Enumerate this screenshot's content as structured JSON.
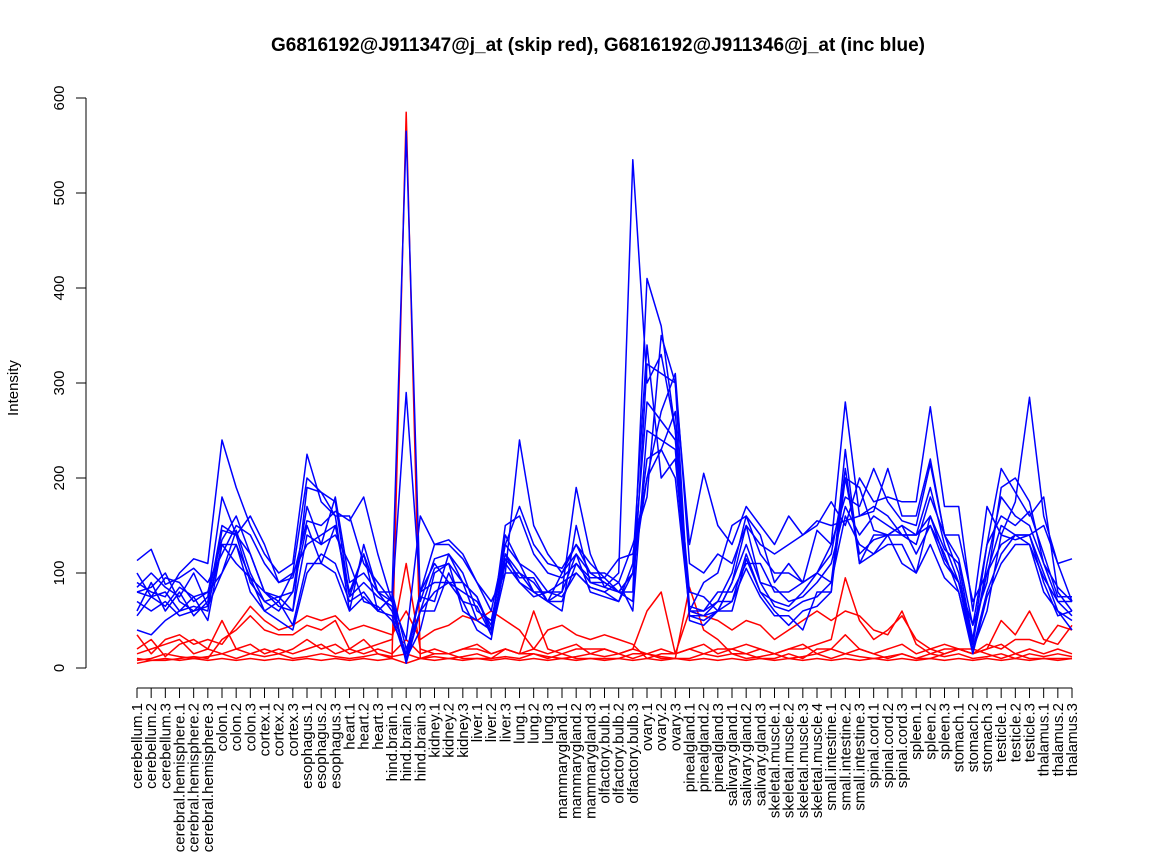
{
  "chart_data": {
    "type": "line",
    "title": "G6816192@J911347@j_at (skip red), G6816192@J911346@j_at (inc blue)",
    "xlabel": "",
    "ylabel": "Intensity",
    "ylim": [
      0,
      600
    ],
    "y_ticks": [
      0,
      100,
      200,
      300,
      400,
      500,
      600
    ],
    "grid": false,
    "legend": "none",
    "colors": {
      "skip": "#ff0000",
      "inc": "#0000ff"
    },
    "categories": [
      "cerebellum.1",
      "cerebellum.2",
      "cerebellum.3",
      "cerebral.hemisphere.1",
      "cerebral.hemisphere.2",
      "cerebral.hemisphere.3",
      "colon.1",
      "colon.2",
      "colon.3",
      "cortex.1",
      "cortex.2",
      "cortex.3",
      "esophagus.1",
      "esophagus.2",
      "esophagus.3",
      "heart.1",
      "heart.2",
      "heart.3",
      "hind.brain.1",
      "hind.brain.2",
      "hind.brain.3",
      "kidney.1",
      "kidney.2",
      "kidney.3",
      "liver.1",
      "liver.2",
      "liver.3",
      "lung.1",
      "lung.2",
      "lung.3",
      "mammarygland.1",
      "mammarygland.2",
      "mammarygland.3",
      "olfactory.bulb.1",
      "olfactory.bulb.2",
      "olfactory.bulb.3",
      "ovary.1",
      "ovary.2",
      "ovary.3",
      "pinealgland.1",
      "pinealgland.2",
      "pinealgland.3",
      "salivary.gland.1",
      "salivary.gland.2",
      "salivary.gland.3",
      "skeletal.muscle.1",
      "skeletal.muscle.2",
      "skeletal.muscle.3",
      "skeletal.muscle.4",
      "small.intestine.1",
      "small.intestine.2",
      "small.intestine.3",
      "spinal.cord.1",
      "spinal.cord.2",
      "spinal.cord.3",
      "spleen.1",
      "spleen.2",
      "spleen.3",
      "stomach.1",
      "stomach.2",
      "stomach.3",
      "testicle.1",
      "testicle.2",
      "testicle.3",
      "thalamus.1",
      "thalamus.2",
      "thalamus.3"
    ],
    "series": [
      {
        "group": "inc",
        "values": [
          113,
          125,
          88,
          95,
          105,
          90,
          120,
          150,
          140,
          110,
          90,
          95,
          155,
          150,
          165,
          155,
          180,
          120,
          70,
          30,
          160,
          130,
          130,
          115,
          90,
          60,
          130,
          170,
          130,
          110,
          105,
          130,
          110,
          95,
          115,
          120,
          200,
          270,
          310,
          110,
          100,
          120,
          110,
          150,
          130,
          120,
          130,
          140,
          155,
          150,
          155,
          160,
          165,
          210,
          160,
          160,
          220,
          140,
          140,
          70,
          100,
          130,
          140,
          140,
          150,
          110,
          115
        ]
      },
      {
        "group": "inc",
        "values": [
          90,
          80,
          75,
          100,
          115,
          110,
          240,
          190,
          150,
          120,
          100,
          110,
          225,
          175,
          160,
          160,
          110,
          90,
          70,
          290,
          80,
          130,
          135,
          120,
          90,
          70,
          100,
          240,
          150,
          120,
          100,
          130,
          100,
          100,
          90,
          130,
          180,
          350,
          300,
          130,
          205,
          150,
          130,
          170,
          150,
          130,
          160,
          140,
          150,
          175,
          150,
          200,
          175,
          180,
          175,
          175,
          275,
          170,
          170,
          60,
          170,
          140,
          175,
          285,
          160,
          110,
          70
        ]
      },
      {
        "group": "inc",
        "values": [
          80,
          85,
          100,
          70,
          60,
          75,
          180,
          140,
          160,
          130,
          90,
          100,
          200,
          185,
          175,
          75,
          120,
          60,
          75,
          565,
          70,
          115,
          120,
          90,
          75,
          40,
          150,
          160,
          120,
          100,
          95,
          110,
          95,
          95,
          80,
          80,
          410,
          360,
          250,
          60,
          90,
          100,
          150,
          160,
          140,
          90,
          110,
          90,
          145,
          130,
          180,
          170,
          210,
          175,
          155,
          150,
          215,
          140,
          115,
          45,
          130,
          210,
          185,
          160,
          180,
          80,
          60
        ]
      },
      {
        "group": "inc",
        "values": [
          55,
          75,
          80,
          60,
          65,
          60,
          145,
          140,
          120,
          80,
          65,
          60,
          190,
          185,
          160,
          60,
          130,
          80,
          80,
          20,
          60,
          105,
          110,
          90,
          50,
          40,
          140,
          110,
          100,
          80,
          80,
          190,
          120,
          85,
          100,
          535,
          300,
          330,
          250,
          65,
          60,
          70,
          100,
          160,
          120,
          100,
          100,
          90,
          100,
          120,
          200,
          190,
          145,
          140,
          140,
          140,
          190,
          130,
          90,
          45,
          90,
          190,
          200,
          175,
          110,
          85,
          70
        ]
      },
      {
        "group": "inc",
        "values": [
          80,
          75,
          65,
          85,
          75,
          80,
          100,
          145,
          100,
          70,
          75,
          60,
          140,
          130,
          140,
          110,
          70,
          65,
          50,
          15,
          75,
          70,
          120,
          100,
          60,
          50,
          120,
          100,
          90,
          70,
          60,
          150,
          90,
          85,
          80,
          100,
          200,
          230,
          200,
          60,
          60,
          80,
          80,
          110,
          110,
          80,
          80,
          90,
          100,
          90,
          160,
          130,
          120,
          140,
          150,
          140,
          160,
          125,
          110,
          30,
          130,
          160,
          150,
          165,
          120,
          75,
          75
        ]
      },
      {
        "group": "inc",
        "values": [
          40,
          35,
          50,
          60,
          75,
          50,
          130,
          130,
          80,
          60,
          50,
          40,
          100,
          120,
          110,
          70,
          80,
          60,
          55,
          8,
          80,
          90,
          90,
          70,
          65,
          35,
          100,
          100,
          80,
          70,
          80,
          120,
          80,
          75,
          70,
          100,
          220,
          230,
          270,
          55,
          50,
          60,
          90,
          130,
          90,
          65,
          60,
          70,
          75,
          90,
          210,
          110,
          140,
          140,
          110,
          100,
          160,
          115,
          90,
          20,
          60,
          140,
          135,
          140,
          100,
          60,
          40
        ]
      },
      {
        "group": "inc",
        "values": [
          70,
          60,
          70,
          55,
          60,
          65,
          100,
          130,
          95,
          60,
          70,
          45,
          110,
          110,
          100,
          60,
          75,
          60,
          75,
          5,
          60,
          60,
          100,
          70,
          40,
          30,
          115,
          95,
          95,
          70,
          70,
          110,
          90,
          90,
          80,
          70,
          320,
          310,
          300,
          50,
          45,
          60,
          60,
          115,
          80,
          60,
          45,
          60,
          65,
          80,
          200,
          120,
          135,
          140,
          150,
          120,
          150,
          120,
          80,
          15,
          75,
          110,
          130,
          130,
          80,
          60,
          50
        ]
      },
      {
        "group": "inc",
        "values": [
          60,
          90,
          60,
          80,
          55,
          70,
          150,
          140,
          90,
          70,
          60,
          80,
          150,
          110,
          150,
          80,
          120,
          80,
          70,
          10,
          40,
          100,
          110,
          60,
          50,
          40,
          110,
          90,
          75,
          80,
          75,
          100,
          85,
          80,
          70,
          110,
          340,
          200,
          220,
          60,
          55,
          70,
          70,
          105,
          75,
          55,
          55,
          40,
          80,
          80,
          230,
          110,
          120,
          130,
          130,
          100,
          130,
          95,
          80,
          20,
          80,
          120,
          140,
          140,
          90,
          55,
          60
        ]
      },
      {
        "group": "inc",
        "values": [
          100,
          75,
          95,
          90,
          70,
          80,
          135,
          160,
          120,
          80,
          70,
          100,
          130,
          140,
          150,
          75,
          90,
          75,
          65,
          10,
          60,
          80,
          90,
          90,
          75,
          35,
          120,
          90,
          80,
          80,
          90,
          100,
          85,
          80,
          90,
          60,
          250,
          240,
          230,
          55,
          55,
          60,
          70,
          120,
          80,
          70,
          65,
          80,
          100,
          130,
          280,
          160,
          170,
          160,
          140,
          140,
          150,
          110,
          90,
          30,
          100,
          150,
          140,
          130,
          95,
          70,
          70
        ]
      },
      {
        "group": "inc",
        "values": [
          85,
          100,
          85,
          75,
          100,
          65,
          130,
          110,
          95,
          80,
          75,
          80,
          170,
          130,
          180,
          90,
          100,
          80,
          60,
          15,
          80,
          110,
          90,
          80,
          70,
          45,
          130,
          110,
          80,
          70,
          100,
          120,
          100,
          90,
          80,
          100,
          280,
          260,
          240,
          80,
          75,
          60,
          90,
          150,
          90,
          85,
          70,
          75,
          90,
          110,
          170,
          140,
          160,
          150,
          140,
          130,
          180,
          140,
          100,
          25,
          110,
          180,
          160,
          150,
          110,
          70,
          55
        ]
      }
    ],
    "red_series": [
      {
        "group": "skip",
        "values": [
          10,
          8,
          8,
          10,
          12,
          10,
          30,
          40,
          55,
          40,
          35,
          35,
          45,
          40,
          50,
          20,
          30,
          15,
          10,
          585,
          10,
          15,
          15,
          10,
          10,
          10,
          20,
          15,
          15,
          10,
          15,
          10,
          10,
          10,
          10,
          15,
          15,
          10,
          10,
          85,
          40,
          30,
          15,
          15,
          10,
          10,
          15,
          10,
          20,
          20,
          35,
          20,
          15,
          10,
          15,
          10,
          10,
          15,
          20,
          20,
          15,
          10,
          15,
          10,
          10,
          10,
          10
        ]
      },
      {
        "group": "skip",
        "values": [
          20,
          30,
          12,
          25,
          30,
          20,
          50,
          20,
          15,
          20,
          15,
          20,
          30,
          20,
          25,
          15,
          20,
          25,
          30,
          110,
          20,
          15,
          15,
          20,
          20,
          15,
          20,
          15,
          60,
          20,
          15,
          20,
          20,
          20,
          15,
          20,
          60,
          80,
          15,
          20,
          15,
          20,
          20,
          25,
          20,
          15,
          20,
          20,
          25,
          30,
          95,
          50,
          30,
          40,
          55,
          30,
          20,
          25,
          20,
          15,
          20,
          50,
          35,
          60,
          30,
          25,
          45
        ]
      },
      {
        "group": "skip",
        "values": [
          35,
          15,
          30,
          35,
          25,
          30,
          25,
          45,
          65,
          50,
          40,
          45,
          55,
          50,
          55,
          40,
          45,
          40,
          35,
          60,
          30,
          40,
          45,
          55,
          50,
          60,
          50,
          40,
          20,
          40,
          45,
          35,
          30,
          35,
          30,
          25,
          10,
          15,
          15,
          60,
          55,
          50,
          40,
          50,
          45,
          30,
          40,
          50,
          60,
          50,
          60,
          55,
          40,
          35,
          60,
          25,
          15,
          20,
          20,
          15,
          25,
          20,
          30,
          30,
          25,
          45,
          40
        ]
      },
      {
        "group": "skip",
        "values": [
          8,
          10,
          15,
          12,
          10,
          12,
          15,
          10,
          15,
          12,
          15,
          10,
          12,
          15,
          12,
          10,
          12,
          15,
          12,
          15,
          10,
          12,
          10,
          12,
          15,
          10,
          12,
          10,
          15,
          12,
          10,
          12,
          15,
          12,
          15,
          10,
          15,
          12,
          10,
          10,
          15,
          12,
          15,
          10,
          12,
          15,
          10,
          12,
          15,
          10,
          15,
          12,
          10,
          12,
          15,
          10,
          15,
          12,
          15,
          10,
          12,
          15,
          10,
          15,
          12,
          15,
          12
        ]
      },
      {
        "group": "skip",
        "values": [
          15,
          20,
          25,
          30,
          15,
          20,
          15,
          20,
          25,
          15,
          20,
          15,
          20,
          25,
          15,
          20,
          15,
          20,
          15,
          30,
          15,
          20,
          15,
          20,
          25,
          15,
          20,
          15,
          20,
          15,
          20,
          25,
          15,
          20,
          15,
          20,
          15,
          20,
          15,
          20,
          25,
          15,
          20,
          15,
          20,
          15,
          20,
          25,
          15,
          20,
          15,
          20,
          15,
          20,
          25,
          15,
          20,
          15,
          20,
          15,
          20,
          25,
          15,
          20,
          15,
          20,
          15
        ]
      },
      {
        "group": "skip",
        "values": [
          5,
          8,
          10,
          8,
          10,
          8,
          10,
          8,
          10,
          8,
          10,
          8,
          10,
          8,
          10,
          8,
          10,
          8,
          10,
          5,
          10,
          8,
          10,
          8,
          10,
          8,
          10,
          8,
          10,
          8,
          10,
          8,
          10,
          8,
          10,
          8,
          10,
          8,
          10,
          8,
          10,
          8,
          10,
          8,
          10,
          8,
          10,
          8,
          10,
          8,
          10,
          8,
          10,
          8,
          10,
          8,
          10,
          8,
          10,
          8,
          10,
          8,
          10,
          8,
          10,
          8,
          10
        ]
      }
    ]
  }
}
